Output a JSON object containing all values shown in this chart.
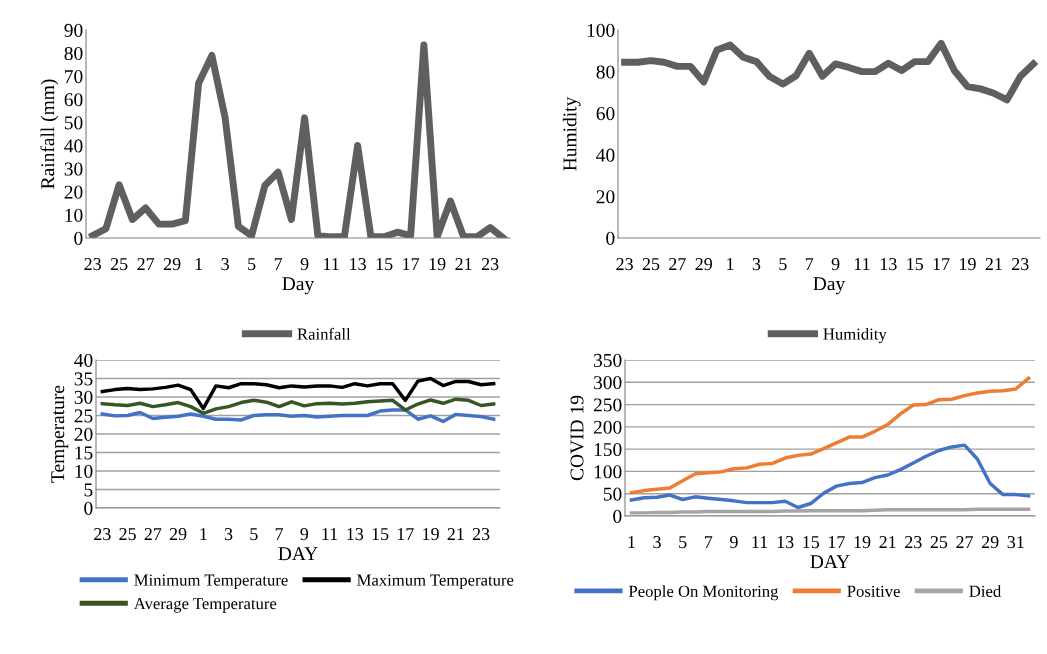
{
  "chart_data": [
    {
      "type": "line",
      "xlabel": "Day",
      "ylabel": "Rainfall (mm)",
      "categories": [
        "23",
        null,
        "25",
        null,
        "27",
        null,
        "29",
        null,
        "1",
        null,
        "3",
        null,
        "5",
        null,
        "7",
        null,
        "9",
        null,
        "11",
        null,
        "13",
        null,
        "15",
        null,
        "17",
        null,
        "19",
        null,
        "21",
        null,
        "23",
        null
      ],
      "ylim": [
        0,
        90
      ],
      "yticks": [
        0,
        10,
        20,
        30,
        40,
        50,
        60,
        70,
        80,
        90
      ],
      "grid": false,
      "legend": "bottom",
      "series": [
        {
          "name": "Rainfall",
          "color": "#5f5f5f",
          "values": [
            1,
            4,
            23,
            8,
            13,
            6,
            6,
            7.5,
            67,
            79,
            52,
            5,
            1,
            22.7,
            28.5,
            8,
            52,
            1,
            0.5,
            0.5,
            40,
            0.5,
            0.5,
            2.5,
            1,
            83.5,
            0.5,
            16,
            0.5,
            0.5,
            4.5,
            0
          ]
        }
      ]
    },
    {
      "type": "line",
      "xlabel": "Day",
      "ylabel": "Humidity",
      "categories": [
        "23",
        null,
        "25",
        null,
        "27",
        null,
        "29",
        null,
        "1",
        null,
        "3",
        null,
        "5",
        null,
        "7",
        null,
        "9",
        null,
        "11",
        null,
        "13",
        null,
        "15",
        null,
        "17",
        null,
        "19",
        null,
        "21",
        null,
        "23",
        null
      ],
      "ylim": [
        0,
        100
      ],
      "yticks": [
        0,
        20,
        40,
        60,
        80,
        100
      ],
      "grid": false,
      "legend": "bottom",
      "series": [
        {
          "name": "Humidity",
          "color": "#5f5f5f",
          "values": [
            84.5,
            84.5,
            85.3,
            84.5,
            82.5,
            82.5,
            75,
            90.4,
            92.8,
            86.9,
            84.8,
            77.6,
            74,
            78,
            88.8,
            77.8,
            83.7,
            82,
            80,
            80,
            84,
            80.5,
            84.8,
            84.8,
            93.6,
            80.5,
            72.8,
            71.7,
            69.6,
            66.4,
            77.6,
            83.7
          ]
        }
      ]
    },
    {
      "type": "line",
      "xlabel": "DAY",
      "ylabel": "Temperature",
      "categories": [
        "23",
        null,
        "25",
        null,
        "27",
        null,
        "29",
        null,
        "1",
        null,
        "3",
        null,
        "5",
        null,
        "7",
        null,
        "9",
        null,
        "11",
        null,
        "13",
        null,
        "15",
        null,
        "17",
        null,
        "19",
        null,
        "21",
        null,
        "23",
        null
      ],
      "ylim": [
        0,
        40
      ],
      "yticks": [
        0,
        5,
        10,
        15,
        20,
        25,
        30,
        35,
        40
      ],
      "grid": "y",
      "legend": "bottom",
      "series": [
        {
          "name": "Minimum Temperature",
          "color": "#4472c4",
          "values": [
            25.4,
            24.9,
            25,
            25.8,
            24.2,
            24.5,
            24.8,
            25.4,
            24.8,
            24,
            24,
            23.8,
            25,
            25.2,
            25.2,
            24.8,
            25,
            24.6,
            24.8,
            25,
            25,
            25,
            26.2,
            26.5,
            26.5,
            24,
            24.9,
            23.4,
            25.3,
            25,
            24.7,
            24
          ]
        },
        {
          "name": "Maximum Temperature",
          "color": "#000000",
          "values": [
            31.5,
            32,
            32.3,
            32,
            32.2,
            32.6,
            33.2,
            32,
            26.9,
            33,
            32.5,
            33.6,
            33.6,
            33.3,
            32.5,
            33,
            32.7,
            33,
            33,
            32.6,
            33.6,
            33,
            33.6,
            33.6,
            29.1,
            34.3,
            35,
            33.1,
            34.2,
            34.2,
            33.3,
            33.6
          ]
        },
        {
          "name": "Average Temperature",
          "color": "#375623",
          "values": [
            28.2,
            27.9,
            27.7,
            28.3,
            27.4,
            27.9,
            28.5,
            27.4,
            25.6,
            26.8,
            27.4,
            28.5,
            29.1,
            28.6,
            27.4,
            28.7,
            27.6,
            28.2,
            28.3,
            28.1,
            28.3,
            28.7,
            28.9,
            29.1,
            26.5,
            28.1,
            29.2,
            28.3,
            29.4,
            29.1,
            27.7,
            28.1
          ]
        }
      ]
    },
    {
      "type": "line",
      "xlabel": "DAY",
      "ylabel": "COVID 19",
      "categories": [
        "1",
        null,
        "3",
        null,
        "5",
        null,
        "7",
        null,
        "9",
        null,
        "11",
        null,
        "13",
        null,
        "15",
        null,
        "17",
        null,
        "19",
        null,
        "21",
        null,
        "23",
        null,
        "25",
        null,
        "27",
        null,
        "29",
        null,
        "31",
        null
      ],
      "ylim": [
        0,
        350
      ],
      "yticks": [
        0,
        50,
        100,
        150,
        200,
        250,
        300,
        350
      ],
      "grid": "y",
      "legend": "bottom",
      "series": [
        {
          "name": "People On Monitoring",
          "color": "#4472c4",
          "values": [
            36,
            41,
            42,
            47,
            37,
            43,
            40,
            37,
            34,
            30,
            30,
            30,
            33,
            19,
            28,
            51,
            67,
            73,
            75,
            86,
            92,
            104,
            119,
            134,
            147,
            155,
            159,
            128,
            73,
            48,
            48,
            45
          ]
        },
        {
          "name": "Positive",
          "color": "#ed7d31",
          "values": [
            52,
            57,
            60,
            63,
            79,
            95,
            97,
            99,
            106,
            108,
            116,
            118,
            130,
            136,
            139,
            151,
            164,
            177,
            177,
            190,
            205,
            229,
            249,
            250,
            261,
            262,
            270,
            276,
            280,
            281,
            285,
            309
          ]
        },
        {
          "name": "Died",
          "color": "#a5a5a5",
          "values": [
            7,
            7,
            8,
            8,
            9,
            9,
            10,
            10,
            10,
            10,
            10,
            10,
            11,
            11,
            12,
            12,
            12,
            12,
            12,
            13,
            14,
            14,
            14,
            14,
            14,
            14,
            14,
            15,
            15,
            15,
            15,
            15
          ]
        }
      ]
    }
  ]
}
